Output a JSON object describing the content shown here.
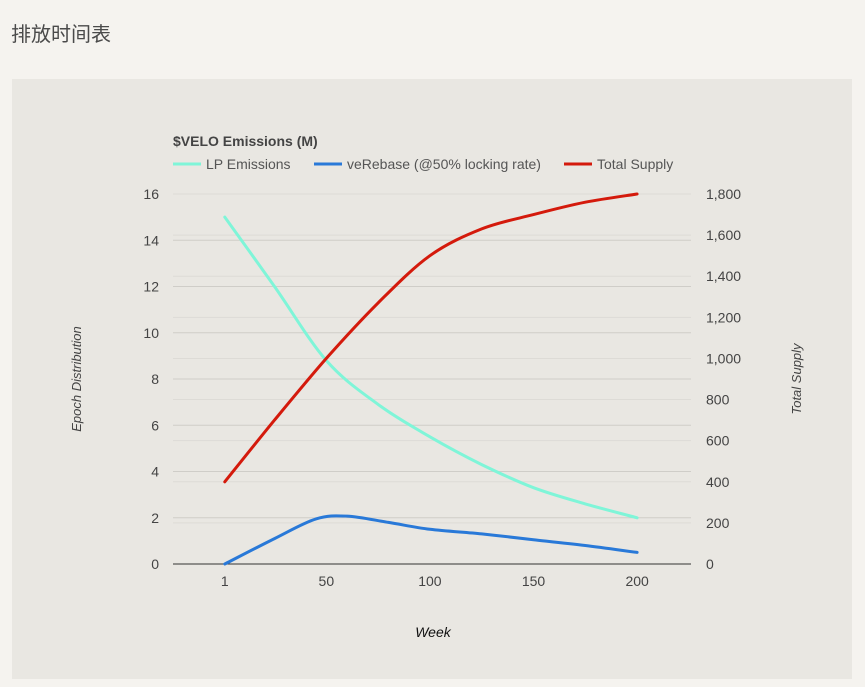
{
  "page": {
    "heading": "排放时间表"
  },
  "chart_data": {
    "type": "line",
    "title": "$VELO Emissions (M)",
    "xlabel": "Week",
    "ylabel_left": "Epoch Distribution",
    "ylabel_right": "Total Supply",
    "x": [
      1,
      50,
      100,
      150,
      200
    ],
    "x_range": [
      -24,
      226
    ],
    "ylim_left": [
      0,
      16
    ],
    "ylim_right": [
      0,
      1800
    ],
    "y_ticks_left": [
      0,
      2,
      4,
      6,
      8,
      10,
      12,
      14,
      16
    ],
    "y_ticks_right": [
      0,
      200,
      400,
      600,
      800,
      1000,
      1200,
      1400,
      1600,
      1800
    ],
    "y_tick_labels_right": [
      "0",
      "200",
      "400",
      "600",
      "800",
      "1,000",
      "1,200",
      "1,400",
      "1,600",
      "1,800"
    ],
    "grid": true,
    "legend_position": "top",
    "series": [
      {
        "name": "LP Emissions",
        "color": "#7ff5d8",
        "axis": "left",
        "points": [
          [
            1,
            15
          ],
          [
            25,
            12
          ],
          [
            50,
            8.8
          ],
          [
            75,
            6.9
          ],
          [
            100,
            5.5
          ],
          [
            125,
            4.3
          ],
          [
            150,
            3.3
          ],
          [
            175,
            2.6
          ],
          [
            200,
            2.0
          ]
        ]
      },
      {
        "name": "veRebase (@50% locking rate)",
        "color": "#2979d8",
        "axis": "left",
        "points": [
          [
            1,
            0
          ],
          [
            25,
            1.1
          ],
          [
            45,
            1.95
          ],
          [
            60,
            2.07
          ],
          [
            80,
            1.8
          ],
          [
            100,
            1.5
          ],
          [
            125,
            1.3
          ],
          [
            150,
            1.05
          ],
          [
            175,
            0.8
          ],
          [
            200,
            0.5
          ]
        ]
      },
      {
        "name": "Total Supply",
        "color": "#d41a0c",
        "axis": "right",
        "points": [
          [
            1,
            400
          ],
          [
            25,
            700
          ],
          [
            50,
            1000
          ],
          [
            75,
            1270
          ],
          [
            100,
            1500
          ],
          [
            125,
            1630
          ],
          [
            150,
            1700
          ],
          [
            175,
            1760
          ],
          [
            200,
            1800
          ]
        ]
      }
    ]
  }
}
